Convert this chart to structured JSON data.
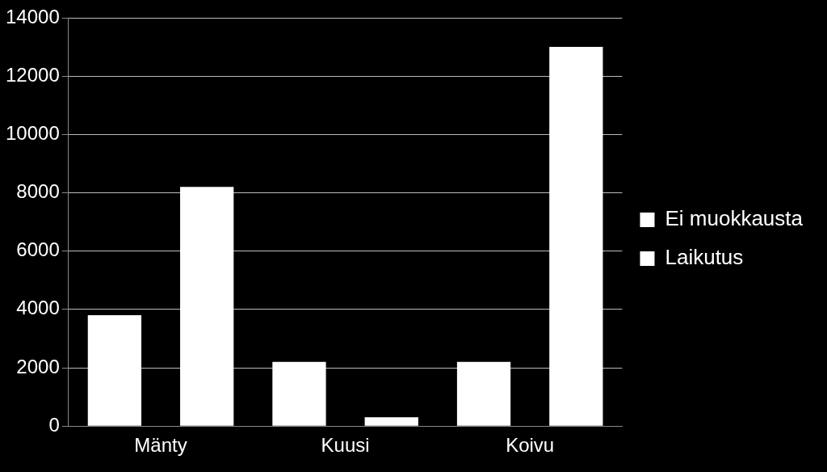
{
  "chart_data": {
    "type": "bar",
    "categories": [
      "Mänty",
      "Kuusi",
      "Koivu"
    ],
    "series": [
      {
        "name": "Ei muokkausta",
        "color": "#ffffff",
        "values": [
          3800,
          2200,
          2200
        ]
      },
      {
        "name": "Laikutus",
        "color": "#ffffff",
        "values": [
          8200,
          300,
          13000
        ]
      }
    ],
    "ylim": [
      0,
      14000
    ],
    "yticks": [
      0,
      2000,
      4000,
      6000,
      8000,
      10000,
      12000,
      14000
    ],
    "grid": "y",
    "legend": "right"
  }
}
